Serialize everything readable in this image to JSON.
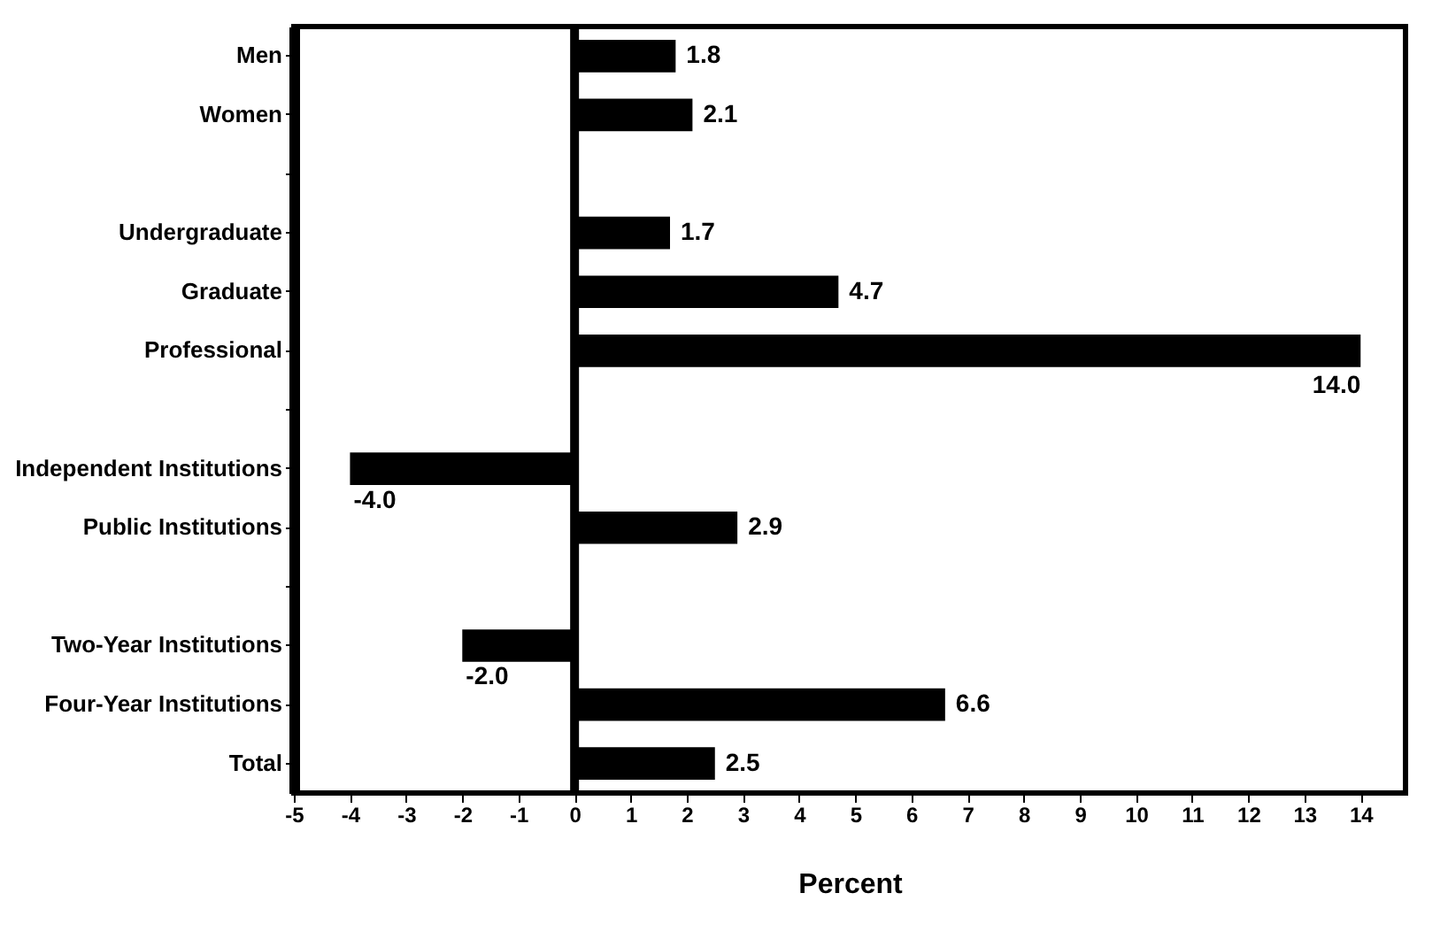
{
  "chart_data": {
    "type": "bar",
    "orientation": "horizontal",
    "xlabel": "Percent",
    "categories": [
      "Men",
      "Women",
      null,
      "Undergraduate",
      "Graduate",
      "Professional",
      null,
      "Independent Institutions",
      "Public Institutions",
      null,
      "Two-Year Institutions",
      "Four-Year Institutions",
      "Total"
    ],
    "values": [
      1.8,
      2.1,
      null,
      1.7,
      4.7,
      14.0,
      null,
      -4.0,
      2.9,
      null,
      -2.0,
      6.6,
      2.5
    ],
    "value_labels": [
      "1.8",
      "2.1",
      null,
      "1.7",
      "4.7",
      "14.0",
      null,
      "-4.0",
      "2.9",
      null,
      "-2.0",
      "6.6",
      "2.5"
    ],
    "color": "#000000",
    "xlim": [
      -5,
      14.8
    ],
    "xticks": [
      -5,
      -4,
      -3,
      -2,
      -1,
      0,
      1,
      2,
      3,
      4,
      5,
      6,
      7,
      8,
      9,
      10,
      11,
      12,
      13,
      14
    ],
    "ref_lines": [
      {
        "axis": "x",
        "value": 0,
        "color": "#000000"
      }
    ],
    "grid": false
  }
}
